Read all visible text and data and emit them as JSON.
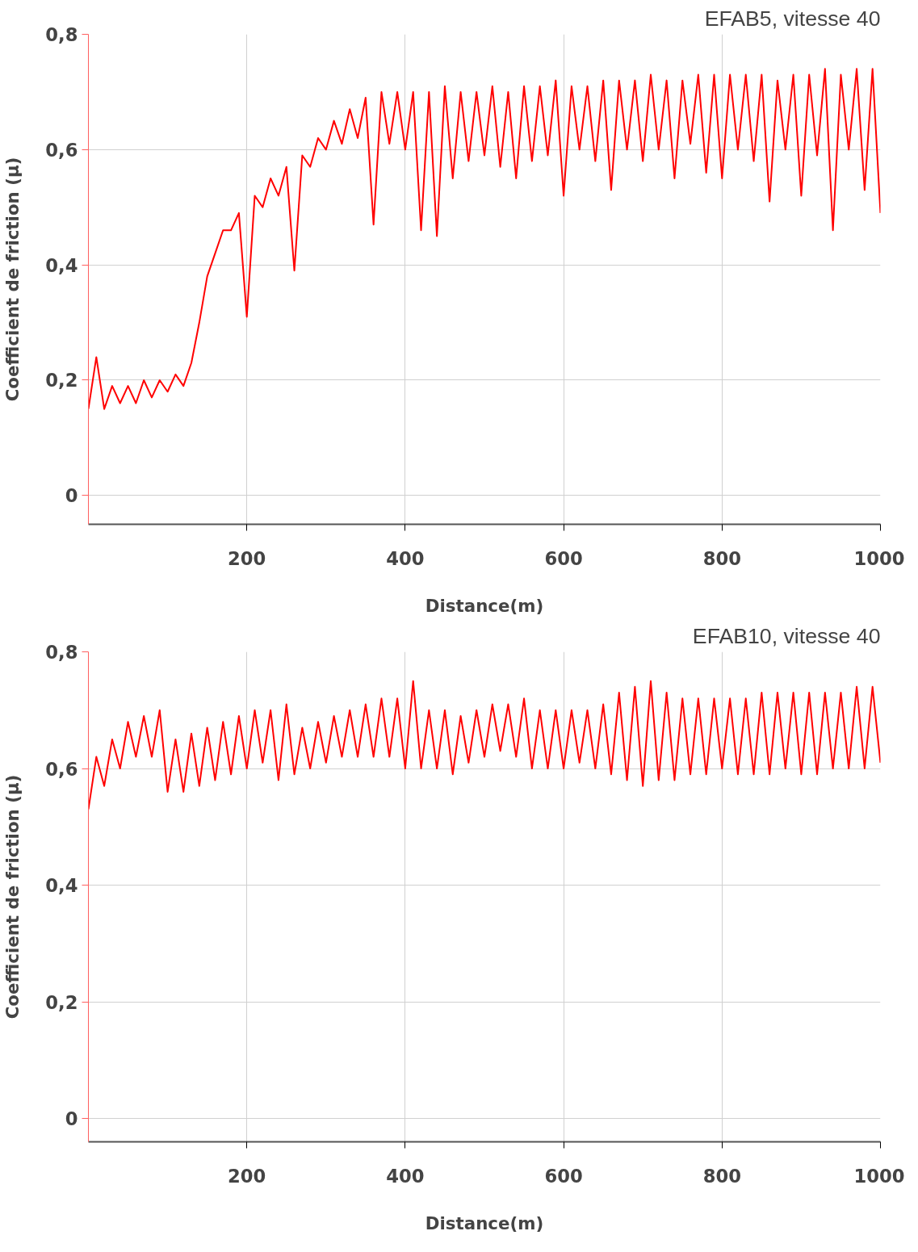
{
  "chart_data": [
    {
      "type": "line",
      "title": "EFAB5, vitesse 40",
      "xlabel": "Distance(m)",
      "ylabel": "Coefficient de friction (µ)",
      "x": [
        0,
        10,
        20,
        30,
        40,
        50,
        60,
        70,
        80,
        90,
        100,
        110,
        120,
        130,
        140,
        150,
        160,
        170,
        180,
        190,
        200,
        210,
        220,
        230,
        240,
        250,
        260,
        270,
        280,
        290,
        300,
        310,
        320,
        330,
        340,
        350,
        360,
        370,
        380,
        390,
        400,
        410,
        420,
        430,
        440,
        450,
        460,
        470,
        480,
        490,
        500,
        510,
        520,
        530,
        540,
        550,
        560,
        570,
        580,
        590,
        600,
        610,
        620,
        630,
        640,
        650,
        660,
        670,
        680,
        690,
        700,
        710,
        720,
        730,
        740,
        750,
        760,
        770,
        780,
        790,
        800,
        810,
        820,
        830,
        840,
        850,
        860,
        870,
        880,
        890,
        900,
        910,
        920,
        930,
        940,
        950,
        960,
        970,
        980,
        990,
        1000
      ],
      "series": [
        {
          "color": "#ff0000",
          "values": [
            0.15,
            0.24,
            0.15,
            0.19,
            0.16,
            0.19,
            0.16,
            0.2,
            0.17,
            0.2,
            0.18,
            0.21,
            0.19,
            0.23,
            0.3,
            0.38,
            0.42,
            0.46,
            0.46,
            0.49,
            0.31,
            0.52,
            0.5,
            0.55,
            0.52,
            0.57,
            0.39,
            0.59,
            0.57,
            0.62,
            0.6,
            0.65,
            0.61,
            0.67,
            0.62,
            0.69,
            0.47,
            0.7,
            0.61,
            0.7,
            0.6,
            0.7,
            0.46,
            0.7,
            0.45,
            0.71,
            0.55,
            0.7,
            0.58,
            0.7,
            0.59,
            0.71,
            0.57,
            0.7,
            0.55,
            0.71,
            0.58,
            0.71,
            0.59,
            0.72,
            0.52,
            0.71,
            0.6,
            0.71,
            0.58,
            0.72,
            0.53,
            0.72,
            0.6,
            0.72,
            0.58,
            0.73,
            0.6,
            0.72,
            0.55,
            0.72,
            0.61,
            0.73,
            0.56,
            0.73,
            0.55,
            0.73,
            0.6,
            0.73,
            0.58,
            0.73,
            0.51,
            0.72,
            0.6,
            0.73,
            0.52,
            0.73,
            0.59,
            0.74,
            0.46,
            0.73,
            0.6,
            0.74,
            0.53,
            0.74,
            0.49
          ]
        }
      ],
      "xlim": [
        0,
        1000
      ],
      "xticks": [
        200,
        400,
        600,
        800,
        1000
      ],
      "ylim": [
        -0.05,
        0.8
      ],
      "yticks": [
        0,
        {
          "value": 0.2,
          "label": "0,2"
        },
        {
          "value": 0.4,
          "label": "0,4"
        },
        {
          "value": 0.6,
          "label": "0,6"
        },
        {
          "value": 0.8,
          "label": "0,8"
        }
      ],
      "grid": true
    },
    {
      "type": "line",
      "title": "EFAB10, vitesse 40",
      "xlabel": "Distance(m)",
      "ylabel": "Coefficient de friction (µ)",
      "x": [
        0,
        10,
        20,
        30,
        40,
        50,
        60,
        70,
        80,
        90,
        100,
        110,
        120,
        130,
        140,
        150,
        160,
        170,
        180,
        190,
        200,
        210,
        220,
        230,
        240,
        250,
        260,
        270,
        280,
        290,
        300,
        310,
        320,
        330,
        340,
        350,
        360,
        370,
        380,
        390,
        400,
        410,
        420,
        430,
        440,
        450,
        460,
        470,
        480,
        490,
        500,
        510,
        520,
        530,
        540,
        550,
        560,
        570,
        580,
        590,
        600,
        610,
        620,
        630,
        640,
        650,
        660,
        670,
        680,
        690,
        700,
        710,
        720,
        730,
        740,
        750,
        760,
        770,
        780,
        790,
        800,
        810,
        820,
        830,
        840,
        850,
        860,
        870,
        880,
        890,
        900,
        910,
        920,
        930,
        940,
        950,
        960,
        970,
        980,
        990,
        1000
      ],
      "series": [
        {
          "color": "#ff0000",
          "values": [
            0.53,
            0.62,
            0.57,
            0.65,
            0.6,
            0.68,
            0.62,
            0.69,
            0.62,
            0.7,
            0.56,
            0.65,
            0.56,
            0.66,
            0.57,
            0.67,
            0.58,
            0.68,
            0.59,
            0.69,
            0.6,
            0.7,
            0.61,
            0.7,
            0.58,
            0.71,
            0.59,
            0.67,
            0.6,
            0.68,
            0.61,
            0.69,
            0.62,
            0.7,
            0.62,
            0.71,
            0.62,
            0.72,
            0.62,
            0.72,
            0.6,
            0.75,
            0.6,
            0.7,
            0.6,
            0.7,
            0.59,
            0.69,
            0.61,
            0.7,
            0.62,
            0.71,
            0.63,
            0.71,
            0.62,
            0.72,
            0.6,
            0.7,
            0.6,
            0.7,
            0.6,
            0.7,
            0.61,
            0.7,
            0.6,
            0.71,
            0.59,
            0.73,
            0.58,
            0.74,
            0.57,
            0.75,
            0.58,
            0.73,
            0.58,
            0.72,
            0.59,
            0.72,
            0.59,
            0.72,
            0.6,
            0.72,
            0.59,
            0.72,
            0.59,
            0.73,
            0.59,
            0.73,
            0.6,
            0.73,
            0.59,
            0.73,
            0.59,
            0.73,
            0.6,
            0.73,
            0.6,
            0.74,
            0.6,
            0.74,
            0.61
          ]
        }
      ],
      "xlim": [
        0,
        1000
      ],
      "xticks": [
        200,
        400,
        600,
        800,
        1000
      ],
      "ylim": [
        -0.04,
        0.8
      ],
      "yticks": [
        0,
        {
          "value": 0.2,
          "label": "0,2"
        },
        {
          "value": 0.4,
          "label": "0,4"
        },
        {
          "value": 0.6,
          "label": "0,6"
        },
        {
          "value": 0.8,
          "label": "0,8"
        }
      ],
      "grid": true
    }
  ]
}
